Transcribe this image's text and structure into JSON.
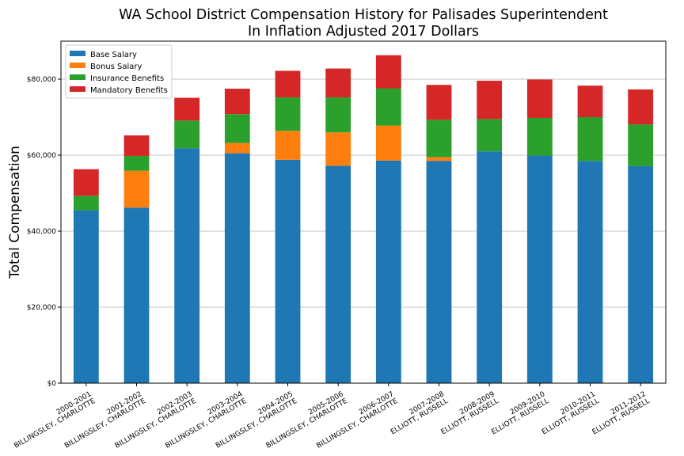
{
  "chart_data": {
    "type": "bar",
    "stacked": true,
    "title": "WA School District Compensation History for Palisades Superintendent",
    "subtitle": "In Inflation Adjusted 2017 Dollars",
    "xlabel": "",
    "ylabel": "Total Compensation",
    "ylim": [
      0,
      90000
    ],
    "yticks": [
      0,
      20000,
      40000,
      60000,
      80000
    ],
    "ytick_labels": [
      "$0",
      "$20,000",
      "$40,000",
      "$60,000",
      "$80,000"
    ],
    "grid": "horizontal",
    "legend_position": "top-left",
    "categories": [
      {
        "year": "2000-2001",
        "name": "BILLINGSLEY, CHARLOTTE"
      },
      {
        "year": "2001-2002",
        "name": "BILLINGSLEY, CHARLOTTE"
      },
      {
        "year": "2002-2003",
        "name": "BILLINGSLEY, CHARLOTTE"
      },
      {
        "year": "2003-2004",
        "name": "BILLINGSLEY, CHARLOTTE"
      },
      {
        "year": "2004-2005",
        "name": "BILLINGSLEY, CHARLOTTE"
      },
      {
        "year": "2005-2006",
        "name": "BILLINGSLEY, CHARLOTTE"
      },
      {
        "year": "2006-2007",
        "name": "BILLINGSLEY, CHARLOTTE"
      },
      {
        "year": "2007-2008",
        "name": "ELLIOTT, RUSSELL"
      },
      {
        "year": "2008-2009",
        "name": "ELLIOTT, RUSSELL"
      },
      {
        "year": "2009-2010",
        "name": "ELLIOTT, RUSSELL"
      },
      {
        "year": "2010-2011",
        "name": "ELLIOTT, RUSSELL"
      },
      {
        "year": "2011-2012",
        "name": "ELLIOTT, RUSSELL"
      }
    ],
    "series": [
      {
        "name": "Base Salary",
        "color": "#1f77b4",
        "values": [
          45500,
          46200,
          61800,
          60500,
          58800,
          57200,
          58600,
          58500,
          61000,
          59900,
          58500,
          57100
        ]
      },
      {
        "name": "Bonus Salary",
        "color": "#ff7f0e",
        "values": [
          0,
          9700,
          0,
          2700,
          7600,
          8800,
          9200,
          1000,
          0,
          0,
          0,
          0
        ]
      },
      {
        "name": "Insurance Benefits",
        "color": "#2ca02c",
        "values": [
          3800,
          3900,
          7300,
          7600,
          8800,
          9200,
          9800,
          9800,
          8500,
          9900,
          11500,
          11000
        ]
      },
      {
        "name": "Mandatory Benefits",
        "color": "#d62728",
        "values": [
          7000,
          5400,
          6000,
          6700,
          7000,
          7600,
          8700,
          9200,
          10100,
          10100,
          8300,
          9200
        ]
      }
    ]
  }
}
